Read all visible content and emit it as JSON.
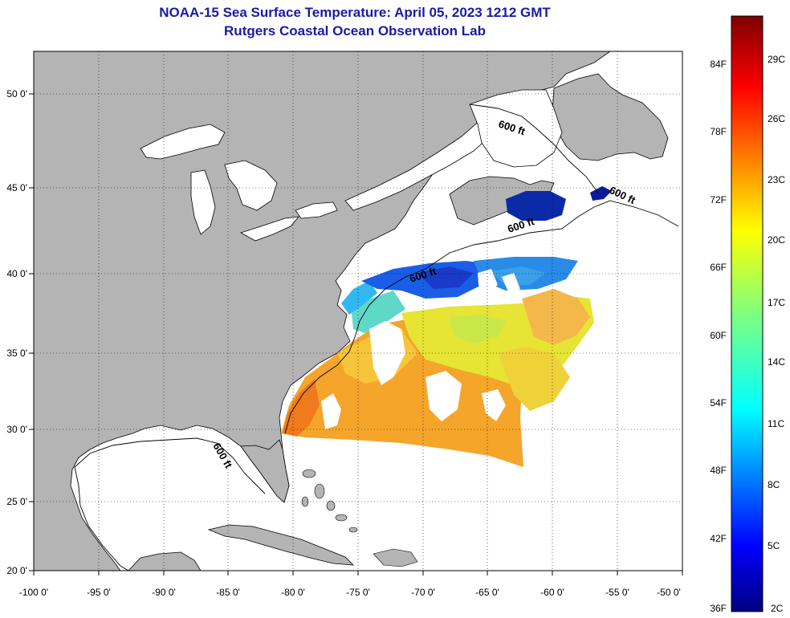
{
  "header": {
    "title": "NOAA-15 Sea Surface Temperature:  April 05, 2023 1212 GMT",
    "subtitle": "Rutgers Coastal Ocean Observation Lab"
  },
  "map": {
    "lon_labels": [
      "-100 0'",
      "-95 0'",
      "-90 0'",
      "-85 0'",
      "-80 0'",
      "-75 0'",
      "-70 0'",
      "-65 0'",
      "-60 0'",
      "-55 0'",
      "-50 0'"
    ],
    "lat_labels": [
      "50 0'",
      "45 0'",
      "40 0'",
      "35 0'",
      "30 0'",
      "25 0'",
      "20 0'"
    ],
    "contour_labels": [
      "600 ft",
      "600 ft",
      "600 ft",
      "600 ft",
      "600 ft"
    ],
    "colors": {
      "land": "#b4b4b4",
      "ocean_nodata": "#ffffff",
      "coast": "#000000"
    }
  },
  "colorbar": {
    "fahrenheit_labels": [
      "84F",
      "78F",
      "72F",
      "66F",
      "60F",
      "54F",
      "48F",
      "42F",
      "36F"
    ],
    "celsius_labels": [
      "29C",
      "26C",
      "23C",
      "20C",
      "17C",
      "14C",
      "11C",
      "8C",
      "5C",
      "2C"
    ],
    "scale": "jet"
  }
}
